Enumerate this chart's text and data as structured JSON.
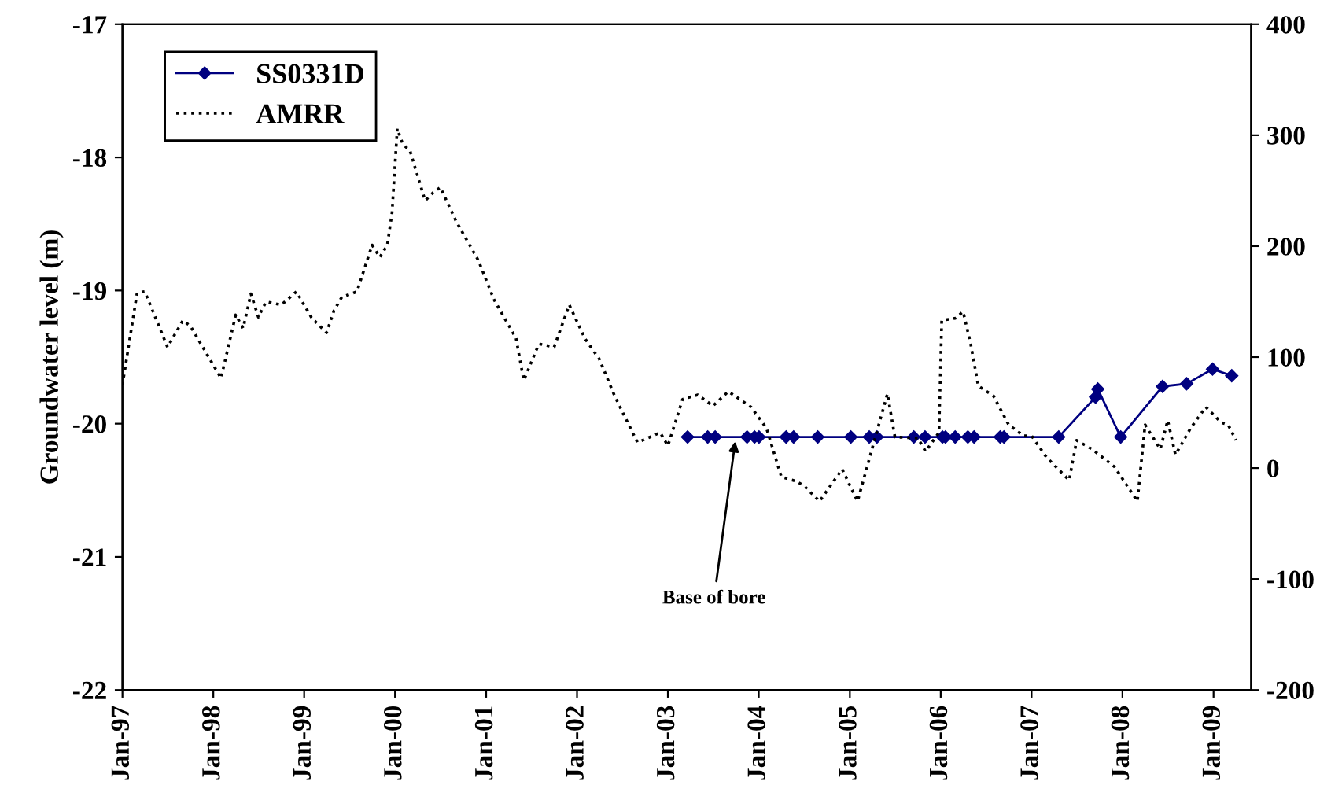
{
  "chart_data": {
    "type": "line",
    "ylabel": "Groundwater level (m)",
    "annotations": [
      {
        "text": "Base of bore",
        "x": "2003-10-01",
        "y": -20.1
      }
    ],
    "series": [
      {
        "name": "SS0331D",
        "color": "#000080",
        "marker": "diamond",
        "line_style": "solid",
        "x": [
          "2003-03-21",
          "2003-06-10",
          "2003-07-10",
          "2003-11-15",
          "2003-12-15",
          "2004-01-02",
          "2004-04-20",
          "2004-05-20",
          "2004-08-25",
          "2005-01-05",
          "2005-03-20",
          "2005-04-20",
          "2005-09-15",
          "2005-10-30",
          "2006-01-08",
          "2006-01-20",
          "2006-02-28",
          "2006-04-20",
          "2006-05-15",
          "2006-08-28",
          "2006-09-12",
          "2007-04-20",
          "2007-09-15",
          "2007-09-24",
          "2007-12-25",
          "2008-06-10",
          "2008-09-15",
          "2008-12-28",
          "2009-03-15"
        ],
        "values": [
          -20.1,
          -20.1,
          -20.1,
          -20.1,
          -20.1,
          -20.1,
          -20.1,
          -20.1,
          -20.1,
          -20.1,
          -20.1,
          -20.1,
          -20.1,
          -20.1,
          -20.1,
          -20.1,
          -20.1,
          -20.1,
          -20.1,
          -20.1,
          -20.1,
          -20.1,
          -19.8,
          -19.74,
          -20.1,
          -19.72,
          -19.7,
          -19.59,
          -19.64
        ]
      },
      {
        "name": "AMRR",
        "color": "#000000",
        "marker": "none",
        "line_style": "dotted",
        "axis": "y2",
        "x": [
          "1997-01",
          "1997-03",
          "1997-04",
          "1997-07",
          "1997-09",
          "1997-10",
          "1998-02",
          "1998-04",
          "1998-05",
          "1998-06",
          "1998-07",
          "1998-08",
          "1998-10",
          "1998-12",
          "1999-02",
          "1999-04",
          "1999-05",
          "1999-06",
          "1999-08",
          "1999-10",
          "1999-11",
          "1999-12-01",
          "1999-12-20",
          "2000-01-10",
          "2000-02",
          "2000-03",
          "2000-05",
          "2000-06",
          "2000-07",
          "2000-09",
          "2000-12",
          "2001-02",
          "2001-05",
          "2001-06",
          "2001-08",
          "2001-10",
          "2001-12",
          "2002-02",
          "2002-04",
          "2002-06",
          "2002-09",
          "2002-12",
          "2003-01",
          "2003-03",
          "2003-05",
          "2003-07",
          "2003-09",
          "2003-12",
          "2004-02",
          "2004-04",
          "2004-06",
          "2004-07",
          "2004-09",
          "2004-12",
          "2005-02",
          "2005-04",
          "2005-06",
          "2005-07",
          "2005-10",
          "2005-11",
          "2005-12-25",
          "2006-01-05",
          "2006-03",
          "2006-04",
          "2006-05",
          "2006-06",
          "2006-08",
          "2006-10",
          "2006-12",
          "2007-01",
          "2007-03",
          "2007-06",
          "2007-07",
          "2007-09",
          "2007-12",
          "2008-03",
          "2008-04",
          "2008-06",
          "2008-07",
          "2008-08",
          "2008-10",
          "2008-12",
          "2009-02",
          "2009-03",
          "2009-04"
        ],
        "values": [
          75,
          158,
          159,
          109,
          133,
          128,
          81,
          138,
          126,
          157,
          136,
          150,
          147,
          159,
          135,
          122,
          142,
          154,
          159,
          201,
          190,
          201,
          230,
          306,
          292,
          286,
          241,
          248,
          253,
          223,
          187,
          152,
          117,
          79,
          112,
          109,
          147,
          117,
          98,
          65,
          23,
          32,
          20,
          62,
          66,
          56,
          69,
          55,
          36,
          -8,
          -12,
          -16,
          -30,
          -1,
          -30,
          18,
          67,
          28,
          27,
          15,
          32,
          133,
          135,
          141,
          112,
          74,
          65,
          39,
          29,
          29,
          10,
          -11,
          25,
          17,
          1,
          -30,
          39,
          17,
          43,
          12,
          36,
          55,
          41,
          39,
          25
        ]
      }
    ],
    "xlim": [
      "1997-01-01",
      "2009-06-01"
    ],
    "xticks": [
      {
        "value": "1997-01-01",
        "label": "Jan-97"
      },
      {
        "value": "1998-01-01",
        "label": "Jan-98"
      },
      {
        "value": "1999-01-01",
        "label": "Jan-99"
      },
      {
        "value": "2000-01-01",
        "label": "Jan-00"
      },
      {
        "value": "2001-01-01",
        "label": "Jan-01"
      },
      {
        "value": "2002-01-01",
        "label": "Jan-02"
      },
      {
        "value": "2003-01-01",
        "label": "Jan-03"
      },
      {
        "value": "2004-01-01",
        "label": "Jan-04"
      },
      {
        "value": "2005-01-01",
        "label": "Jan-05"
      },
      {
        "value": "2006-01-01",
        "label": "Jan-06"
      },
      {
        "value": "2007-01-01",
        "label": "Jan-07"
      },
      {
        "value": "2008-01-01",
        "label": "Jan-08"
      },
      {
        "value": "2009-01-01",
        "label": "Jan-09"
      }
    ],
    "ylim": [
      -22,
      -17
    ],
    "yticks": [
      -22,
      -21,
      -20,
      -19,
      -18,
      -17
    ],
    "y2lim": [
      -200,
      400
    ],
    "y2ticks": [
      -200,
      -100,
      0,
      100,
      200,
      300,
      400
    ],
    "grid": false,
    "legend": "top left"
  }
}
